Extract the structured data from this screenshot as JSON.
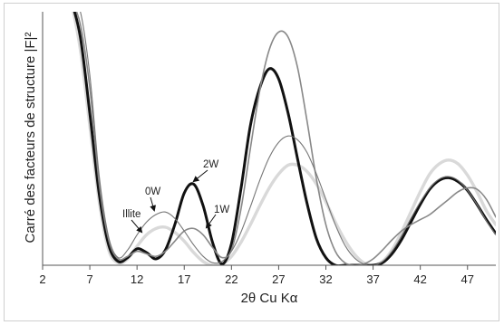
{
  "chart_data": {
    "type": "line",
    "xlabel": "2θ Cu Kα",
    "ylabel": "Carré des facteurs de structure |F|²",
    "xlim": [
      2,
      50
    ],
    "ylim": [
      0,
      10
    ],
    "xticks": [
      "2",
      "7",
      "12",
      "17",
      "22",
      "27",
      "32",
      "37",
      "42",
      "47"
    ],
    "grid": false,
    "annotations": [
      {
        "text": "2W",
        "target_series": 1
      },
      {
        "text": "1W",
        "target_series": 2
      },
      {
        "text": "0W",
        "target_series": 3
      },
      {
        "text": "Illite",
        "target_series": 0
      }
    ],
    "series": [
      {
        "color": "#d9d9d9",
        "style": "very-light-gray-thick",
        "x": [
          5,
          6,
          7,
          8,
          9,
          10,
          11,
          12,
          13,
          14,
          15,
          16,
          17,
          18,
          19,
          20,
          21,
          22,
          23,
          24,
          25,
          26,
          27,
          28,
          29,
          30,
          31,
          32,
          33,
          34,
          35,
          36,
          37,
          38,
          39,
          40,
          41,
          42,
          43,
          44,
          45,
          46,
          47,
          48,
          49,
          50
        ],
        "y": [
          10.5,
          8.5,
          5.5,
          2.5,
          0.6,
          0.1,
          0.25,
          0.75,
          1.2,
          1.45,
          1.5,
          1.3,
          0.95,
          0.5,
          0.15,
          0.0,
          0.05,
          0.35,
          0.9,
          1.6,
          2.35,
          3.05,
          3.6,
          3.95,
          3.95,
          3.7,
          3.2,
          2.5,
          1.7,
          1.0,
          0.45,
          0.1,
          0.0,
          0.15,
          0.6,
          1.3,
          2.1,
          2.9,
          3.6,
          4.0,
          4.15,
          4.0,
          3.55,
          2.9,
          2.15,
          1.6
        ]
      },
      {
        "color": "#111111",
        "style": "black-thick",
        "x": [
          5,
          6,
          7,
          8,
          9,
          10,
          11,
          12,
          13,
          14,
          15,
          16,
          17,
          18,
          19,
          20,
          21,
          22,
          23,
          24,
          25,
          26,
          27,
          28,
          29,
          30,
          31,
          32,
          33,
          34,
          35,
          36,
          37,
          38,
          39,
          40,
          41,
          42,
          43,
          44,
          45,
          46,
          47,
          48,
          49,
          50
        ],
        "y": [
          10.5,
          9.0,
          6.0,
          2.8,
          0.8,
          0.15,
          0.3,
          0.65,
          0.5,
          0.25,
          0.6,
          1.6,
          2.85,
          3.2,
          2.35,
          0.9,
          0.05,
          0.85,
          3.0,
          5.5,
          7.0,
          7.75,
          7.35,
          6.0,
          4.2,
          2.45,
          1.05,
          0.3,
          0.0,
          0.0,
          0.0,
          0.0,
          0.0,
          0.1,
          0.45,
          1.0,
          1.7,
          2.4,
          3.0,
          3.35,
          3.45,
          3.3,
          2.95,
          2.4,
          1.8,
          1.25
        ]
      },
      {
        "color": "#888888",
        "style": "gray-medium",
        "x": [
          5,
          6,
          7,
          8,
          9,
          10,
          11,
          12,
          13,
          14,
          15,
          16,
          17,
          18,
          19,
          20,
          21,
          22,
          23,
          24,
          25,
          26,
          27,
          28,
          29,
          30,
          31,
          32,
          33,
          34,
          35,
          36,
          37,
          38,
          39,
          40,
          41,
          42,
          43,
          44,
          45,
          46,
          47,
          48,
          49,
          50
        ],
        "y": [
          10.5,
          9.5,
          7.0,
          3.2,
          1.0,
          0.25,
          0.35,
          0.55,
          0.45,
          0.35,
          0.55,
          0.95,
          1.35,
          1.45,
          1.2,
          0.7,
          0.3,
          0.6,
          2.2,
          4.6,
          6.9,
          8.5,
          9.2,
          9.0,
          7.8,
          5.7,
          3.4,
          1.6,
          0.55,
          0.1,
          0.0,
          0.05,
          0.25,
          0.6,
          1.0,
          1.35,
          1.6,
          1.8,
          2.0,
          2.3,
          2.6,
          2.9,
          3.05,
          3.0,
          2.6,
          1.9
        ]
      },
      {
        "color": "#777777",
        "style": "thin-dark-gray",
        "x": [
          5,
          6,
          7,
          8,
          9,
          10,
          11,
          12,
          13,
          14,
          15,
          16,
          17,
          18,
          19,
          20,
          21,
          22,
          23,
          24,
          25,
          26,
          27,
          28,
          29,
          30,
          31,
          32,
          33,
          34,
          35,
          36,
          37,
          38,
          39,
          40,
          41,
          42,
          43,
          44,
          45,
          46,
          47,
          48,
          49,
          50
        ],
        "y": [
          10.5,
          10.0,
          7.5,
          3.5,
          1.1,
          0.3,
          0.6,
          1.2,
          1.7,
          2.0,
          2.1,
          1.85,
          1.35,
          0.8,
          0.35,
          0.1,
          0.15,
          0.55,
          1.3,
          2.3,
          3.35,
          4.25,
          4.85,
          5.1,
          4.95,
          4.45,
          3.6,
          2.6,
          1.6,
          0.8,
          0.3,
          0.05,
          0.0,
          0.15,
          0.55,
          1.15,
          1.85,
          2.5,
          3.05,
          3.4,
          3.5,
          3.35,
          2.95,
          2.4,
          1.75,
          1.2
        ]
      }
    ]
  }
}
